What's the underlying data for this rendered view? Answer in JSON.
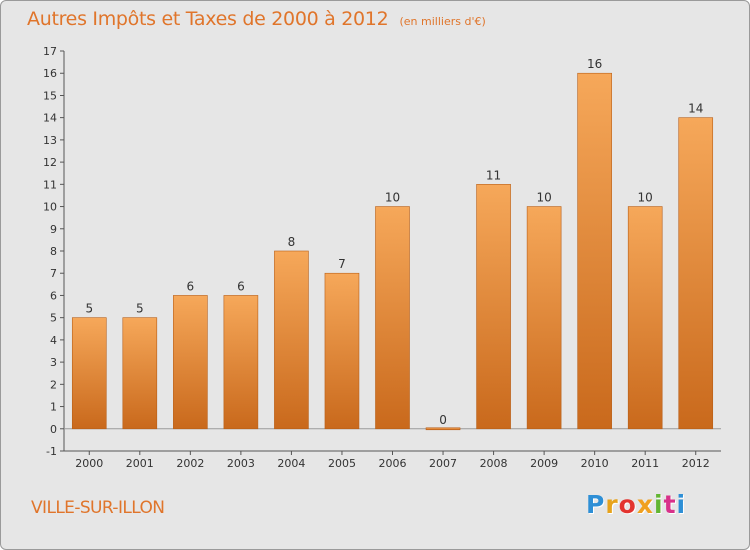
{
  "header": {
    "title": "Autres Impôts et Taxes de 2000 à 2012",
    "subtitle": "(en milliers d'€)"
  },
  "footer": {
    "place": "VILLE-SUR-ILLON",
    "logo_text": "Proxiti"
  },
  "colors": {
    "title": "#e0752b",
    "bar_top": "#f6a85a",
    "bar_bottom": "#c9691c",
    "background": "#e6e6e6",
    "logo_letters": [
      "#2e8fd6",
      "#e7a31b",
      "#e3342f",
      "#f0a020",
      "#62b632",
      "#d8318a",
      "#2e8fd6"
    ]
  },
  "chart_data": {
    "type": "bar",
    "title": "Autres Impôts et Taxes de 2000 à 2012",
    "subtitle": "(en milliers d'€)",
    "xlabel": "",
    "ylabel": "",
    "categories": [
      "2000",
      "2001",
      "2002",
      "2003",
      "2004",
      "2005",
      "2006",
      "2007",
      "2008",
      "2009",
      "2010",
      "2011",
      "2012"
    ],
    "values": [
      5,
      5,
      6,
      6,
      8,
      7,
      10,
      0,
      11,
      10,
      16,
      10,
      14
    ],
    "ylim": [
      -1,
      17
    ],
    "yticks": [
      -1,
      0,
      1,
      2,
      3,
      4,
      5,
      6,
      7,
      8,
      9,
      10,
      11,
      12,
      13,
      14,
      15,
      16,
      17
    ],
    "grid": false,
    "legend": "none",
    "data_labels": true
  }
}
